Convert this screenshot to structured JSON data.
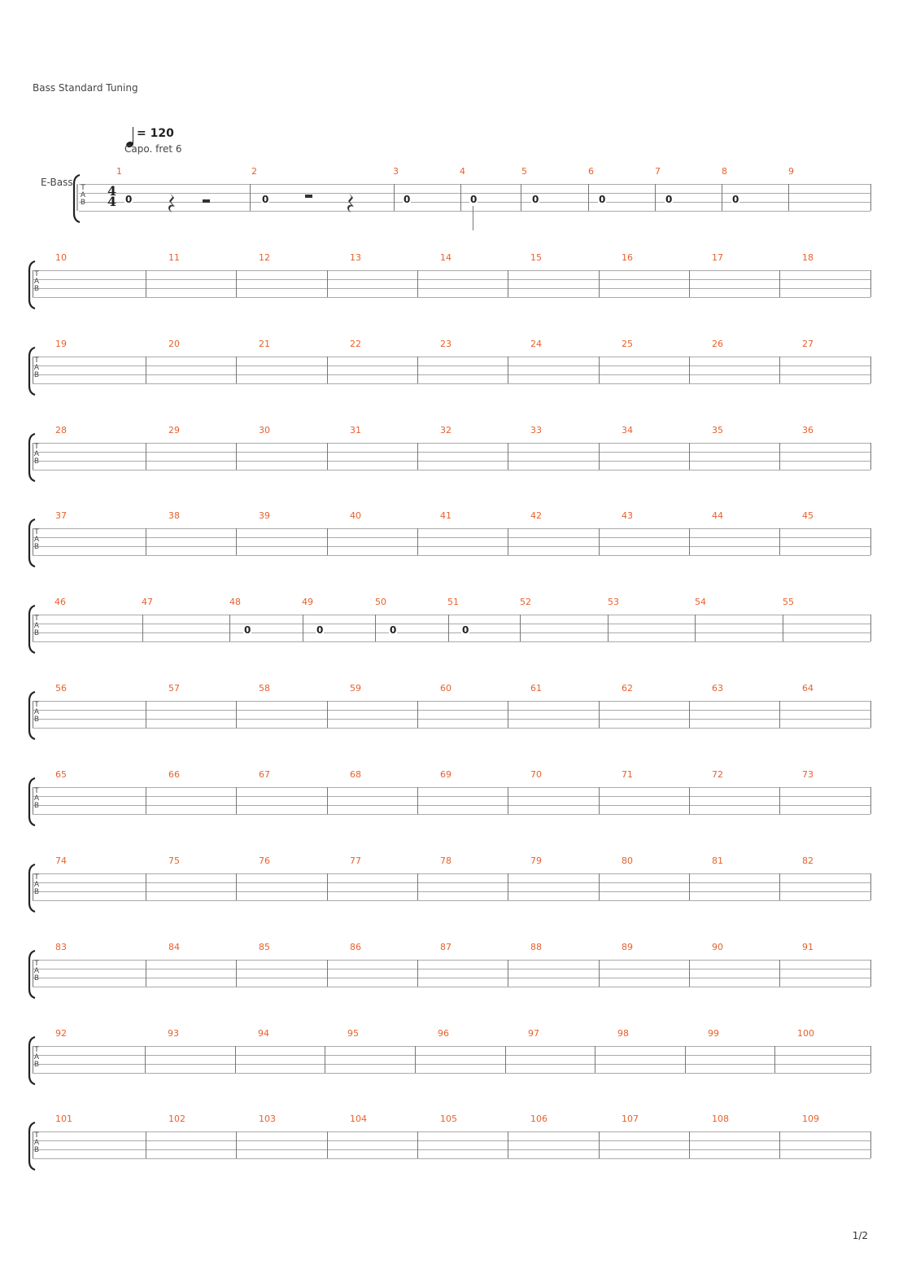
{
  "header": {
    "tuning": "Bass Standard Tuning",
    "tempo_value": "= 120",
    "capo": "Capo. fret 6",
    "instrument": "E-Bass"
  },
  "time_signature": {
    "top": "4",
    "bottom": "4"
  },
  "tab_clef": [
    "T",
    "A",
    "B"
  ],
  "systems": [
    {
      "measures": [
        "1",
        "2",
        "3",
        "4",
        "5",
        "6",
        "7",
        "8",
        "9"
      ]
    },
    {
      "measures": [
        "10",
        "11",
        "12",
        "13",
        "14",
        "15",
        "16",
        "17",
        "18"
      ]
    },
    {
      "measures": [
        "19",
        "20",
        "21",
        "22",
        "23",
        "24",
        "25",
        "26",
        "27"
      ]
    },
    {
      "measures": [
        "28",
        "29",
        "30",
        "31",
        "32",
        "33",
        "34",
        "35",
        "36"
      ]
    },
    {
      "measures": [
        "37",
        "38",
        "39",
        "40",
        "41",
        "42",
        "43",
        "44",
        "45"
      ]
    },
    {
      "measures": [
        "46",
        "47",
        "48",
        "49",
        "50",
        "51",
        "52",
        "53",
        "54",
        "55"
      ]
    },
    {
      "measures": [
        "56",
        "57",
        "58",
        "59",
        "60",
        "61",
        "62",
        "63",
        "64"
      ]
    },
    {
      "measures": [
        "65",
        "66",
        "67",
        "68",
        "69",
        "70",
        "71",
        "72",
        "73"
      ]
    },
    {
      "measures": [
        "74",
        "75",
        "76",
        "77",
        "78",
        "79",
        "80",
        "81",
        "82"
      ]
    },
    {
      "measures": [
        "83",
        "84",
        "85",
        "86",
        "87",
        "88",
        "89",
        "90",
        "91"
      ]
    },
    {
      "measures": [
        "92",
        "93",
        "94",
        "95",
        "96",
        "97",
        "98",
        "99",
        "100"
      ]
    },
    {
      "measures": [
        "101",
        "102",
        "103",
        "104",
        "105",
        "106",
        "107",
        "108",
        "109"
      ]
    }
  ],
  "notes": {
    "s0": [
      "0",
      "0",
      "0",
      "0",
      "0",
      "0",
      "0",
      "0"
    ],
    "s5": [
      "0",
      "0",
      "0",
      "0"
    ]
  },
  "footer": {
    "page": "1/2"
  },
  "colors": {
    "measure_number": "#e8602c",
    "staff_line": "#aaaaaa"
  }
}
